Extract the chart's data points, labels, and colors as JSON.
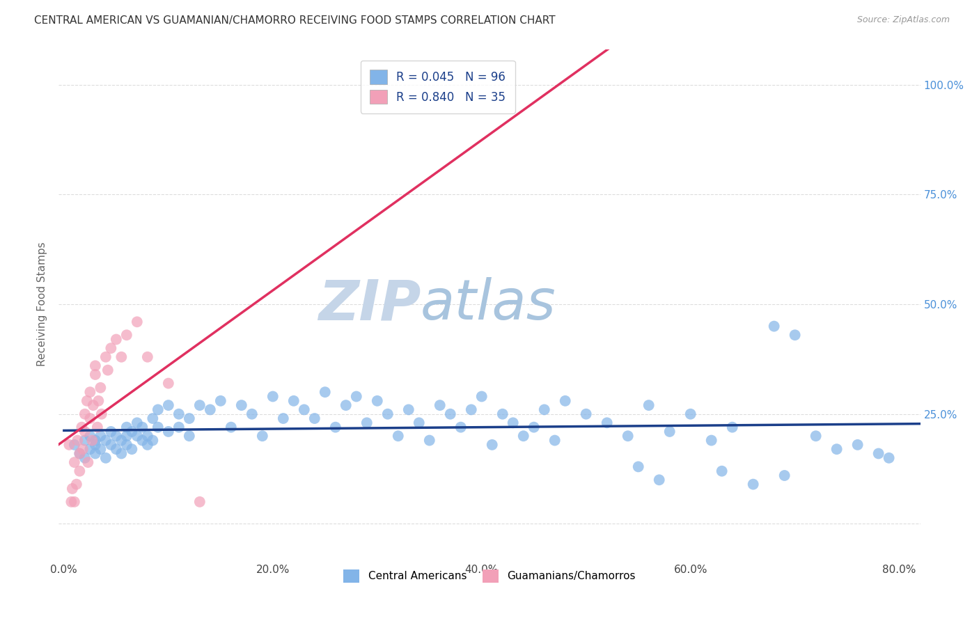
{
  "title": "CENTRAL AMERICAN VS GUAMANIAN/CHAMORRO RECEIVING FOOD STAMPS CORRELATION CHART",
  "source": "Source: ZipAtlas.com",
  "xlabel_ticks": [
    "0.0%",
    "20.0%",
    "40.0%",
    "60.0%",
    "80.0%"
  ],
  "xlabel_tick_vals": [
    0.0,
    0.2,
    0.4,
    0.6,
    0.8
  ],
  "ylabel": "Receiving Food Stamps",
  "ylabel_ticks": [
    "100.0%",
    "75.0%",
    "50.0%",
    "25.0%"
  ],
  "ylabel_tick_vals": [
    1.0,
    0.75,
    0.5,
    0.25
  ],
  "blue_R": 0.045,
  "blue_N": 96,
  "pink_R": 0.84,
  "pink_N": 35,
  "blue_color": "#82B4E8",
  "pink_color": "#F2A0B8",
  "blue_line_color": "#1B3F8A",
  "pink_line_color": "#E03060",
  "legend_blue_label": "Central Americans",
  "legend_pink_label": "Guamanians/Chamorros",
  "watermark_zip": "ZIP",
  "watermark_atlas": "atlas",
  "watermark_zip_color": "#C5D5E8",
  "watermark_atlas_color": "#A8C4DE",
  "title_color": "#333333",
  "axis_label_color": "#666666",
  "tick_color_right": "#4A90D9",
  "grid_color": "#DDDDDD",
  "background_color": "#FFFFFF",
  "blue_x": [
    0.01,
    0.015,
    0.02,
    0.02,
    0.025,
    0.025,
    0.03,
    0.03,
    0.03,
    0.035,
    0.035,
    0.04,
    0.04,
    0.045,
    0.045,
    0.05,
    0.05,
    0.055,
    0.055,
    0.06,
    0.06,
    0.06,
    0.065,
    0.065,
    0.07,
    0.07,
    0.075,
    0.075,
    0.08,
    0.08,
    0.085,
    0.085,
    0.09,
    0.09,
    0.1,
    0.1,
    0.11,
    0.11,
    0.12,
    0.12,
    0.13,
    0.14,
    0.15,
    0.16,
    0.17,
    0.18,
    0.19,
    0.2,
    0.21,
    0.22,
    0.23,
    0.24,
    0.25,
    0.26,
    0.27,
    0.28,
    0.29,
    0.3,
    0.31,
    0.32,
    0.33,
    0.34,
    0.35,
    0.36,
    0.37,
    0.38,
    0.39,
    0.4,
    0.41,
    0.42,
    0.43,
    0.44,
    0.45,
    0.46,
    0.47,
    0.48,
    0.5,
    0.52,
    0.54,
    0.56,
    0.58,
    0.6,
    0.62,
    0.64,
    0.68,
    0.7,
    0.72,
    0.74,
    0.76,
    0.78,
    0.55,
    0.57,
    0.63,
    0.66,
    0.69,
    0.79
  ],
  "blue_y": [
    0.18,
    0.16,
    0.15,
    0.19,
    0.17,
    0.2,
    0.18,
    0.16,
    0.19,
    0.17,
    0.2,
    0.19,
    0.15,
    0.18,
    0.21,
    0.17,
    0.2,
    0.19,
    0.16,
    0.2,
    0.22,
    0.18,
    0.21,
    0.17,
    0.2,
    0.23,
    0.19,
    0.22,
    0.2,
    0.18,
    0.24,
    0.19,
    0.22,
    0.26,
    0.21,
    0.27,
    0.25,
    0.22,
    0.24,
    0.2,
    0.27,
    0.26,
    0.28,
    0.22,
    0.27,
    0.25,
    0.2,
    0.29,
    0.24,
    0.28,
    0.26,
    0.24,
    0.3,
    0.22,
    0.27,
    0.29,
    0.23,
    0.28,
    0.25,
    0.2,
    0.26,
    0.23,
    0.19,
    0.27,
    0.25,
    0.22,
    0.26,
    0.29,
    0.18,
    0.25,
    0.23,
    0.2,
    0.22,
    0.26,
    0.19,
    0.28,
    0.25,
    0.23,
    0.2,
    0.27,
    0.21,
    0.25,
    0.19,
    0.22,
    0.45,
    0.43,
    0.2,
    0.17,
    0.18,
    0.16,
    0.13,
    0.1,
    0.12,
    0.09,
    0.11,
    0.15
  ],
  "pink_x": [
    0.005,
    0.007,
    0.008,
    0.01,
    0.01,
    0.012,
    0.013,
    0.015,
    0.015,
    0.017,
    0.018,
    0.02,
    0.02,
    0.022,
    0.023,
    0.025,
    0.025,
    0.027,
    0.028,
    0.03,
    0.03,
    0.032,
    0.033,
    0.035,
    0.036,
    0.04,
    0.042,
    0.045,
    0.05,
    0.055,
    0.06,
    0.07,
    0.08,
    0.1,
    0.13
  ],
  "pink_y": [
    0.18,
    0.05,
    0.08,
    0.14,
    0.05,
    0.09,
    0.19,
    0.16,
    0.12,
    0.22,
    0.17,
    0.25,
    0.21,
    0.28,
    0.14,
    0.3,
    0.24,
    0.19,
    0.27,
    0.34,
    0.36,
    0.22,
    0.28,
    0.31,
    0.25,
    0.38,
    0.35,
    0.4,
    0.42,
    0.38,
    0.43,
    0.46,
    0.38,
    0.32,
    0.05
  ],
  "xlim": [
    -0.005,
    0.82
  ],
  "ylim": [
    -0.08,
    1.08
  ]
}
